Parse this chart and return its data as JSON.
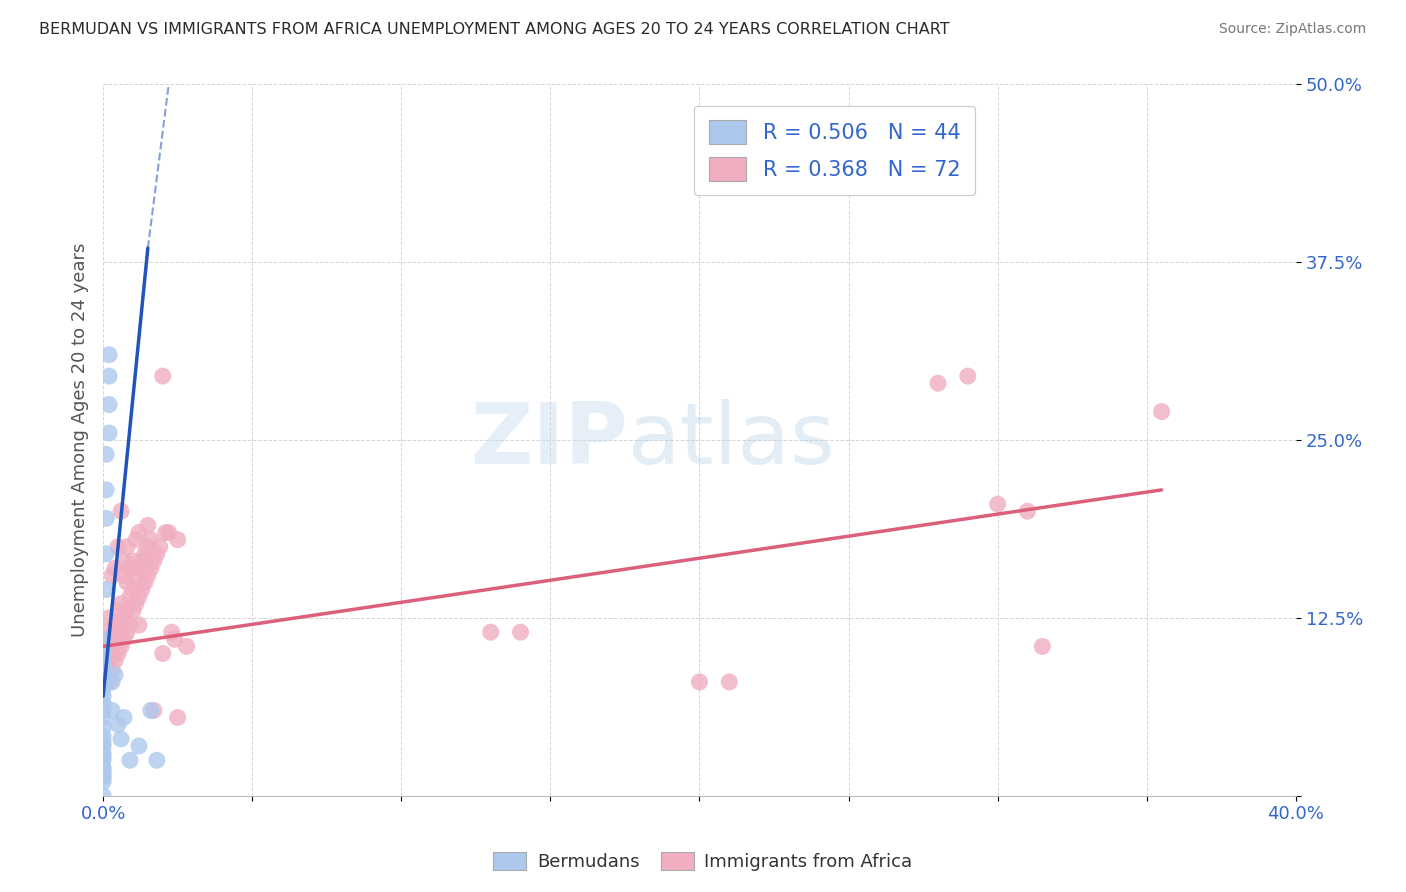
{
  "title": "BERMUDAN VS IMMIGRANTS FROM AFRICA UNEMPLOYMENT AMONG AGES 20 TO 24 YEARS CORRELATION CHART",
  "source": "Source: ZipAtlas.com",
  "ylabel": "Unemployment Among Ages 20 to 24 years",
  "xlim": [
    0.0,
    0.4
  ],
  "ylim": [
    0.0,
    0.5
  ],
  "xticks": [
    0.0,
    0.05,
    0.1,
    0.15,
    0.2,
    0.25,
    0.3,
    0.35,
    0.4
  ],
  "yticks": [
    0.0,
    0.125,
    0.25,
    0.375,
    0.5
  ],
  "legend_entries": [
    {
      "label": "R = 0.506   N = 44",
      "color": "#adc8ed"
    },
    {
      "label": "R = 0.368   N = 72",
      "color": "#f0aec0"
    }
  ],
  "legend_bottom": [
    "Bermudans",
    "Immigrants from Africa"
  ],
  "blue_scatter_color": "#adc8ed",
  "pink_scatter_color": "#f0aec0",
  "blue_line_color": "#2255bb",
  "pink_line_color": "#dd607a",
  "watermark_zip": "ZIP",
  "watermark_atlas": "atlas",
  "background_color": "#ffffff",
  "grid_color": "#cccccc",
  "title_color": "#2a2a2a",
  "axis_label_color": "#555555",
  "blue_scatter": [
    [
      0.0,
      0.0
    ],
    [
      0.0,
      0.01
    ],
    [
      0.0,
      0.013
    ],
    [
      0.0,
      0.015
    ],
    [
      0.0,
      0.018
    ],
    [
      0.0,
      0.02
    ],
    [
      0.0,
      0.025
    ],
    [
      0.0,
      0.028
    ],
    [
      0.0,
      0.03
    ],
    [
      0.0,
      0.035
    ],
    [
      0.0,
      0.038
    ],
    [
      0.0,
      0.042
    ],
    [
      0.0,
      0.048
    ],
    [
      0.0,
      0.055
    ],
    [
      0.0,
      0.06
    ],
    [
      0.0,
      0.065
    ],
    [
      0.0,
      0.07
    ],
    [
      0.0,
      0.075
    ],
    [
      0.0,
      0.08
    ],
    [
      0.0,
      0.085
    ],
    [
      0.0,
      0.09
    ],
    [
      0.0,
      0.095
    ],
    [
      0.0,
      0.1
    ],
    [
      0.0,
      0.105
    ],
    [
      0.0,
      0.11
    ],
    [
      0.001,
      0.145
    ],
    [
      0.001,
      0.17
    ],
    [
      0.001,
      0.195
    ],
    [
      0.001,
      0.215
    ],
    [
      0.001,
      0.24
    ],
    [
      0.002,
      0.255
    ],
    [
      0.002,
      0.275
    ],
    [
      0.002,
      0.295
    ],
    [
      0.002,
      0.31
    ],
    [
      0.003,
      0.06
    ],
    [
      0.003,
      0.08
    ],
    [
      0.004,
      0.085
    ],
    [
      0.005,
      0.05
    ],
    [
      0.006,
      0.04
    ],
    [
      0.007,
      0.055
    ],
    [
      0.009,
      0.025
    ],
    [
      0.012,
      0.035
    ],
    [
      0.016,
      0.06
    ],
    [
      0.018,
      0.025
    ]
  ],
  "pink_scatter": [
    [
      0.0,
      0.085
    ],
    [
      0.0,
      0.095
    ],
    [
      0.0,
      0.105
    ],
    [
      0.001,
      0.09
    ],
    [
      0.001,
      0.1
    ],
    [
      0.001,
      0.115
    ],
    [
      0.002,
      0.08
    ],
    [
      0.002,
      0.095
    ],
    [
      0.002,
      0.11
    ],
    [
      0.002,
      0.125
    ],
    [
      0.003,
      0.088
    ],
    [
      0.003,
      0.098
    ],
    [
      0.003,
      0.112
    ],
    [
      0.003,
      0.155
    ],
    [
      0.004,
      0.095
    ],
    [
      0.004,
      0.108
    ],
    [
      0.004,
      0.12
    ],
    [
      0.004,
      0.16
    ],
    [
      0.005,
      0.1
    ],
    [
      0.005,
      0.115
    ],
    [
      0.005,
      0.13
    ],
    [
      0.005,
      0.175
    ],
    [
      0.006,
      0.105
    ],
    [
      0.006,
      0.12
    ],
    [
      0.006,
      0.135
    ],
    [
      0.006,
      0.2
    ],
    [
      0.007,
      0.11
    ],
    [
      0.007,
      0.125
    ],
    [
      0.007,
      0.155
    ],
    [
      0.007,
      0.165
    ],
    [
      0.008,
      0.115
    ],
    [
      0.008,
      0.13
    ],
    [
      0.008,
      0.15
    ],
    [
      0.008,
      0.175
    ],
    [
      0.009,
      0.12
    ],
    [
      0.009,
      0.14
    ],
    [
      0.009,
      0.16
    ],
    [
      0.01,
      0.13
    ],
    [
      0.01,
      0.145
    ],
    [
      0.01,
      0.165
    ],
    [
      0.011,
      0.135
    ],
    [
      0.011,
      0.155
    ],
    [
      0.011,
      0.18
    ],
    [
      0.012,
      0.14
    ],
    [
      0.012,
      0.12
    ],
    [
      0.012,
      0.16
    ],
    [
      0.012,
      0.185
    ],
    [
      0.013,
      0.145
    ],
    [
      0.013,
      0.165
    ],
    [
      0.014,
      0.15
    ],
    [
      0.014,
      0.17
    ],
    [
      0.015,
      0.155
    ],
    [
      0.015,
      0.175
    ],
    [
      0.015,
      0.19
    ],
    [
      0.016,
      0.16
    ],
    [
      0.016,
      0.18
    ],
    [
      0.017,
      0.165
    ],
    [
      0.017,
      0.06
    ],
    [
      0.018,
      0.17
    ],
    [
      0.019,
      0.175
    ],
    [
      0.02,
      0.1
    ],
    [
      0.02,
      0.295
    ],
    [
      0.021,
      0.185
    ],
    [
      0.022,
      0.185
    ],
    [
      0.023,
      0.115
    ],
    [
      0.024,
      0.11
    ],
    [
      0.025,
      0.18
    ],
    [
      0.025,
      0.055
    ],
    [
      0.028,
      0.105
    ],
    [
      0.13,
      0.115
    ],
    [
      0.14,
      0.115
    ],
    [
      0.2,
      0.08
    ],
    [
      0.21,
      0.08
    ],
    [
      0.28,
      0.29
    ],
    [
      0.29,
      0.295
    ],
    [
      0.3,
      0.205
    ],
    [
      0.31,
      0.2
    ],
    [
      0.315,
      0.105
    ],
    [
      0.355,
      0.27
    ]
  ],
  "blue_line": {
    "x0": 0.0,
    "y0": 0.07,
    "x1": 0.015,
    "y1": 0.385,
    "xd0": 0.015,
    "yd0": 0.385,
    "xd1": 0.022,
    "yd1": 0.5
  },
  "pink_line": {
    "x0": 0.0,
    "y0": 0.105,
    "x1": 0.355,
    "y1": 0.215
  }
}
